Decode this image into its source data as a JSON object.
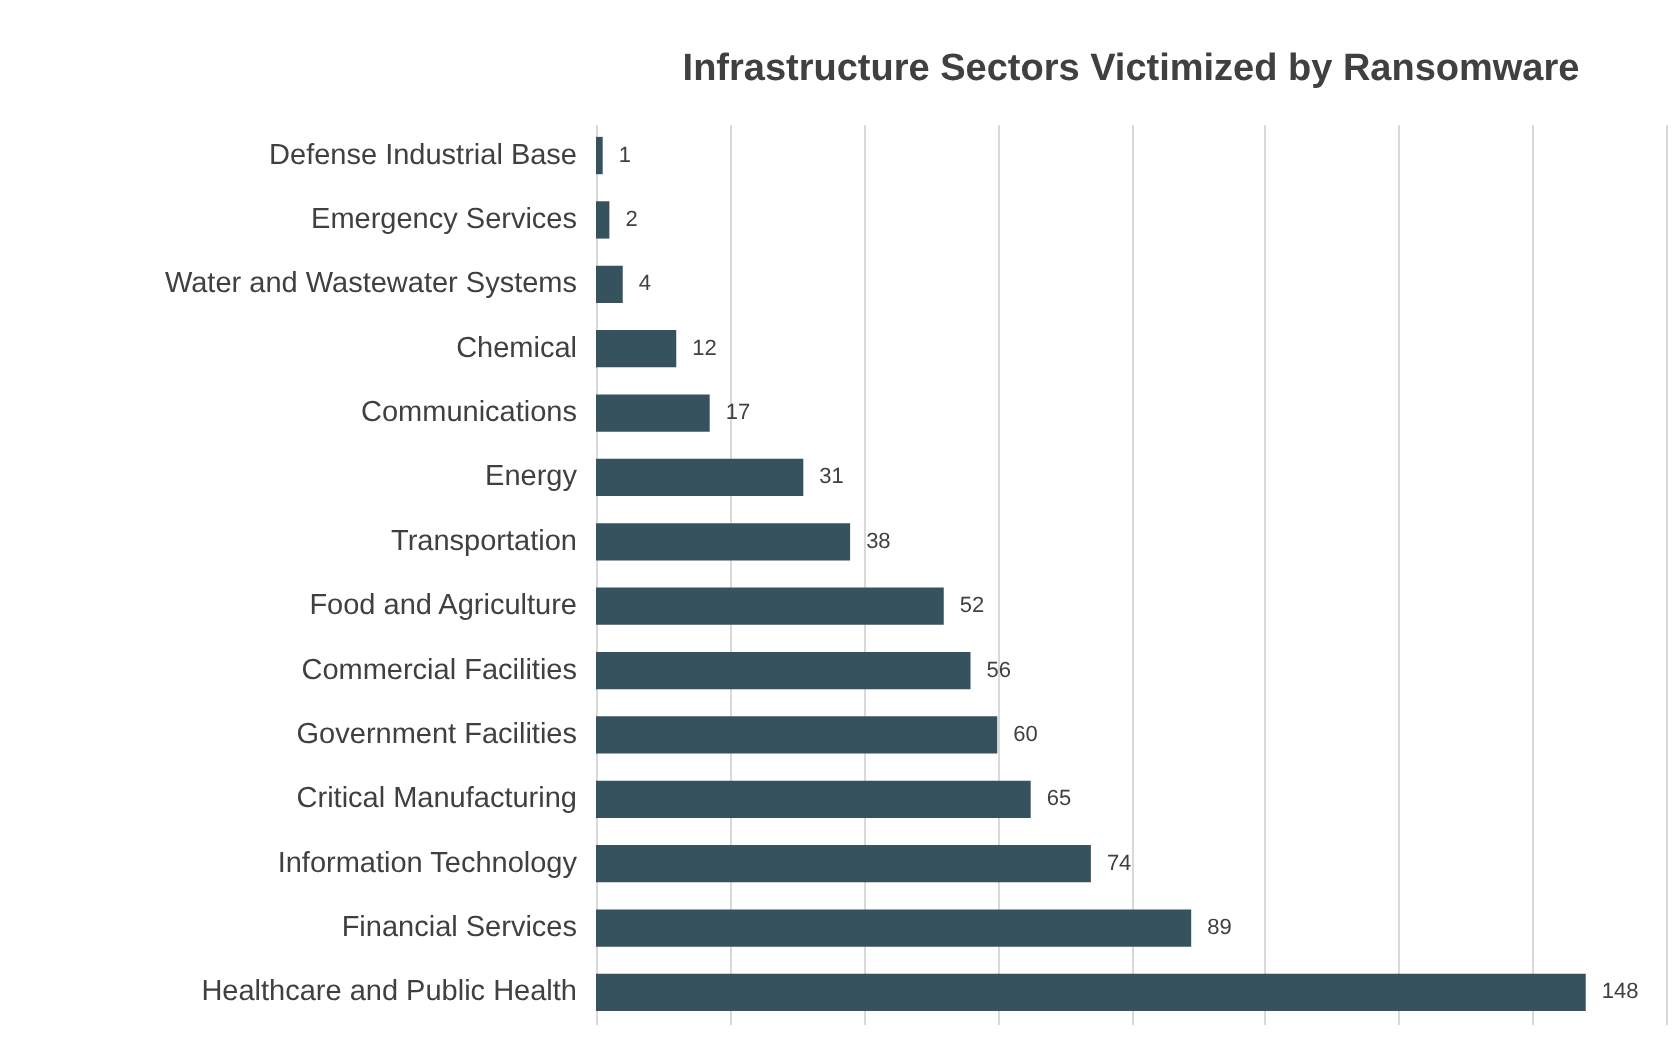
{
  "chart_data": {
    "type": "bar",
    "orientation": "horizontal",
    "title": "Infrastructure Sectors Victimized by Ransomware",
    "categories": [
      "Defense Industrial Base",
      "Emergency Services",
      "Water and Wastewater Systems",
      "Chemical",
      "Communications",
      "Energy",
      "Transportation",
      "Food and Agriculture",
      "Commercial Facilities",
      "Government Facilities",
      "Critical Manufacturing",
      "Information Technology",
      "Financial Services",
      "Healthcare and Public Health"
    ],
    "values": [
      1,
      2,
      4,
      12,
      17,
      31,
      38,
      52,
      56,
      60,
      65,
      74,
      89,
      148
    ],
    "color": "#36525f",
    "xlim": [
      0,
      160
    ],
    "xticks": [
      {
        "value": 0,
        "label": null
      },
      {
        "value": 20,
        "label": null
      },
      {
        "value": 40,
        "label": null
      },
      {
        "value": 60,
        "label": null
      },
      {
        "value": 80,
        "label": null
      },
      {
        "value": 100,
        "label": null
      },
      {
        "value": 120,
        "label": null
      },
      {
        "value": 140,
        "label": null
      },
      {
        "value": 160,
        "label": null
      }
    ],
    "grid": "x",
    "data_labels": true,
    "tick_labels": "y"
  }
}
